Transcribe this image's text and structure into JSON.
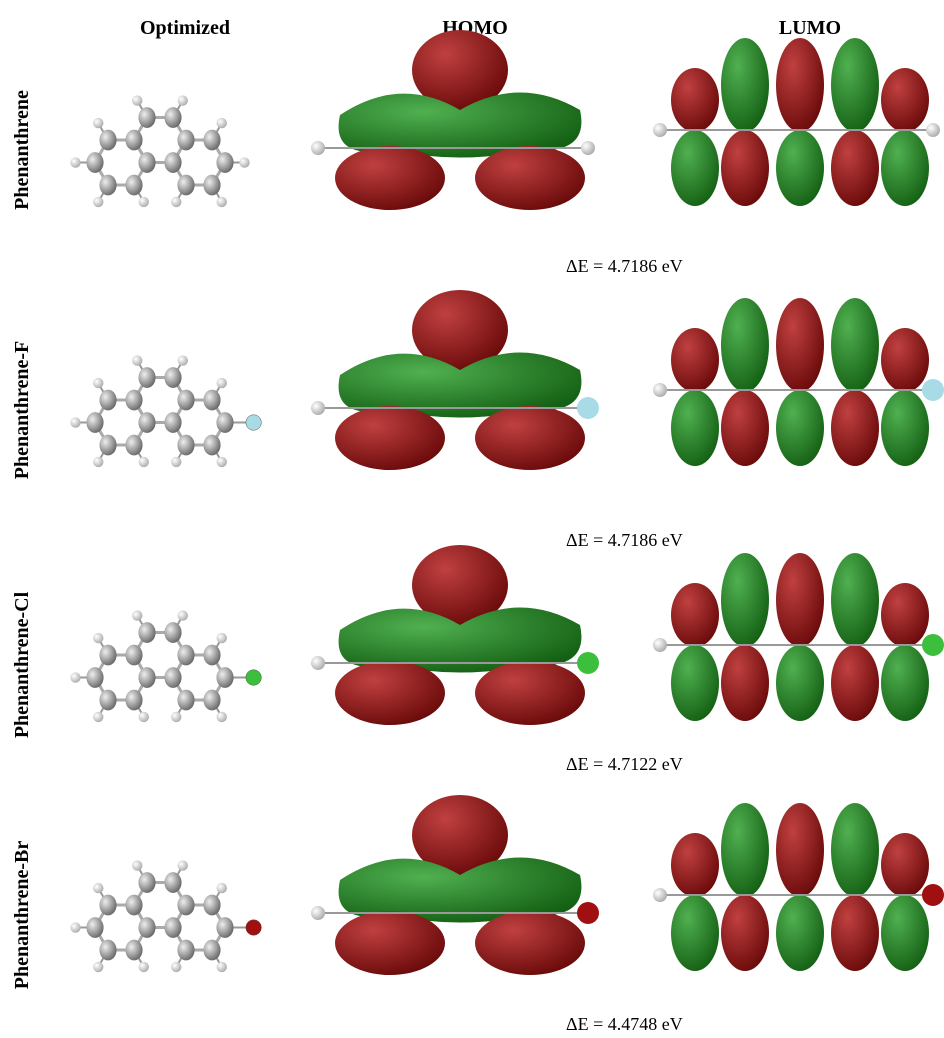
{
  "headers": [
    "Optimized",
    "HOMO",
    "LUMO"
  ],
  "rows": [
    {
      "label": "Phenanthrene",
      "delta_e": "ΔE = 4.7186 eV"
    },
    {
      "label": "Phenanthrene-F",
      "delta_e": "ΔE = 4.7186 eV"
    },
    {
      "label": "Phenanthrene-Cl",
      "delta_e": "ΔE = 4.7122 eV"
    },
    {
      "label": "Phenanthrene-Br",
      "delta_e": "ΔE = 4.4748 eV"
    }
  ]
}
